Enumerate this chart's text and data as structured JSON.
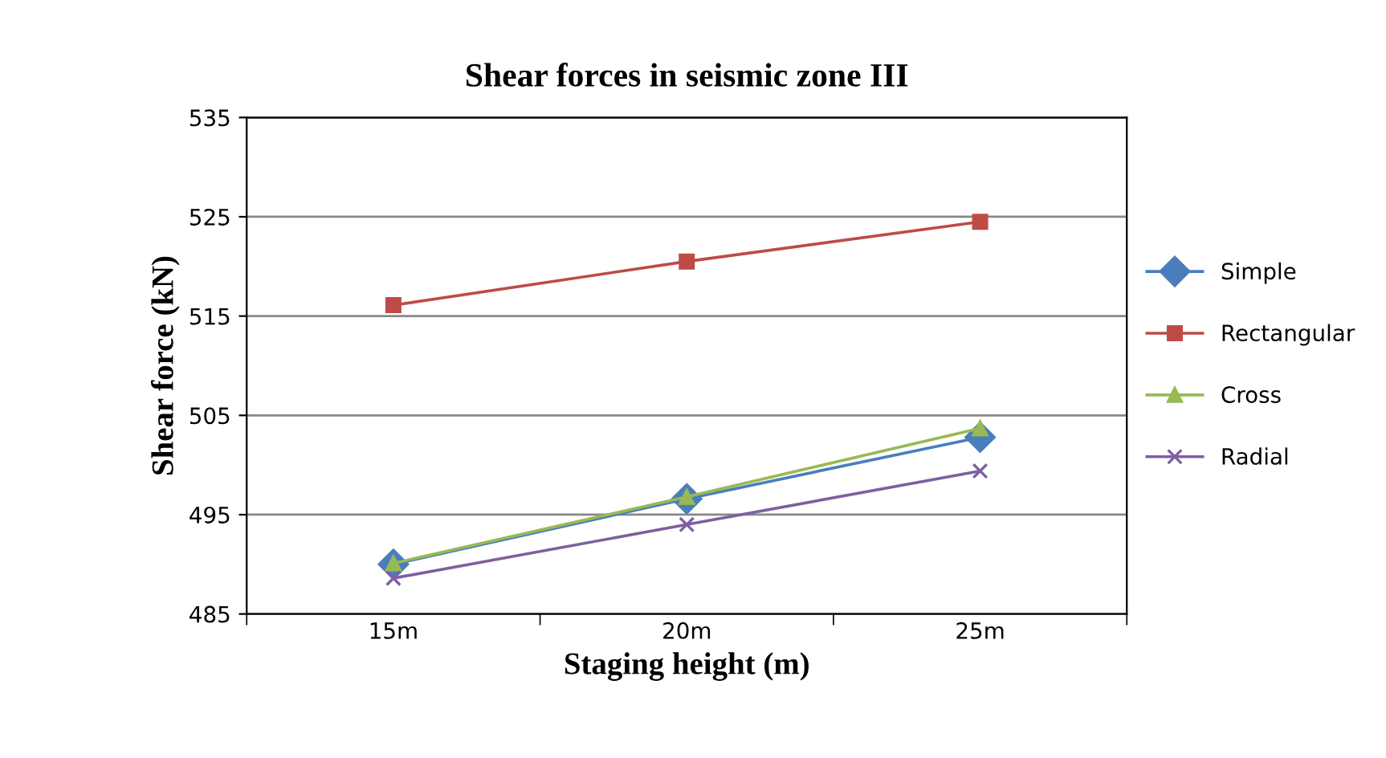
{
  "chart_data": {
    "type": "line",
    "title": "Shear forces in seismic zone III",
    "xlabel": "Staging height (m)",
    "ylabel": "Shear force (kN)",
    "categories": [
      "15m",
      "20m",
      "25m"
    ],
    "series": [
      {
        "name": "Simple",
        "color": "#4a7ebb",
        "marker": "diamond",
        "values": [
          490.0,
          496.6,
          502.8
        ]
      },
      {
        "name": "Rectangular",
        "color": "#be4b48",
        "marker": "square",
        "values": [
          516.1,
          520.5,
          524.5
        ]
      },
      {
        "name": "Cross",
        "color": "#98b954",
        "marker": "triangle",
        "values": [
          490.1,
          496.8,
          503.7
        ]
      },
      {
        "name": "Radial",
        "color": "#7d60a0",
        "marker": "cross",
        "values": [
          488.6,
          494.0,
          499.4
        ]
      }
    ],
    "ylim": [
      485,
      535
    ],
    "yticks": [
      485,
      495,
      505,
      515,
      525,
      535
    ],
    "grid": "y",
    "legend": "right"
  }
}
